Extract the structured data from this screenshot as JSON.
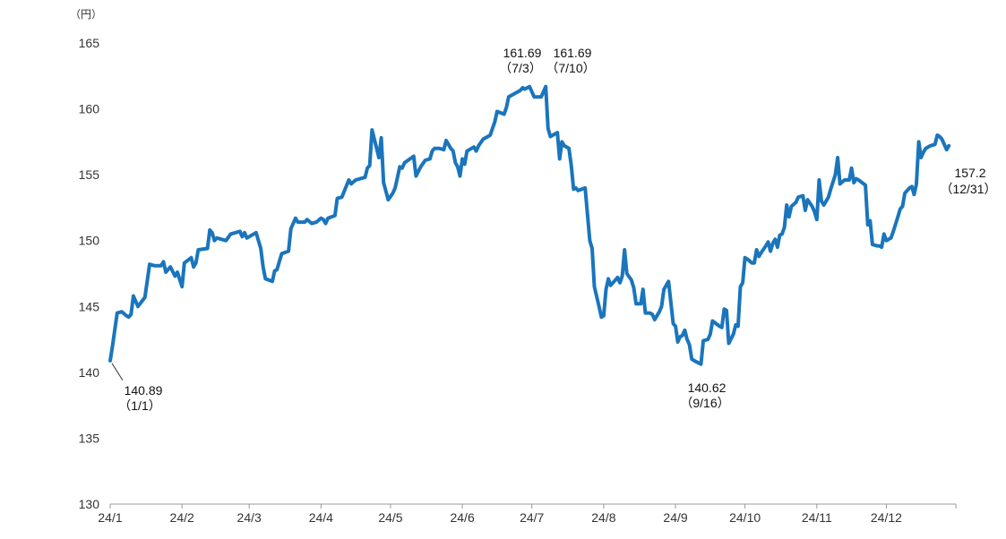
{
  "chart_data": {
    "type": "line",
    "unit_label": "（円）",
    "y_ticks": [
      130,
      135,
      140,
      145,
      150,
      155,
      160,
      165
    ],
    "ylim": [
      130,
      165
    ],
    "x_ticks": [
      "24/1",
      "24/2",
      "24/3",
      "24/4",
      "24/5",
      "24/6",
      "24/7",
      "24/8",
      "24/9",
      "24/10",
      "24/11",
      "24/12"
    ],
    "x_tick_days": [
      0,
      31,
      60,
      91,
      121,
      152,
      182,
      213,
      244,
      274,
      305,
      335
    ],
    "xlim_days": [
      0,
      365
    ],
    "line_color": "#1a75bc",
    "series": [
      {
        "points": [
          [
            0,
            140.89
          ],
          [
            1,
            142.0
          ],
          [
            3,
            144.5
          ],
          [
            5,
            144.6
          ],
          [
            7,
            144.3
          ],
          [
            8,
            144.2
          ],
          [
            9,
            144.4
          ],
          [
            10,
            145.8
          ],
          [
            12,
            145.0
          ],
          [
            15,
            145.7
          ],
          [
            17,
            148.2
          ],
          [
            19,
            148.1
          ],
          [
            22,
            148.1
          ],
          [
            23,
            148.4
          ],
          [
            24,
            147.6
          ],
          [
            26,
            148.0
          ],
          [
            28,
            147.3
          ],
          [
            29,
            147.6
          ],
          [
            31,
            146.5
          ],
          [
            32,
            148.3
          ],
          [
            35,
            148.7
          ],
          [
            36,
            148.0
          ],
          [
            37,
            148.3
          ],
          [
            38,
            149.3
          ],
          [
            42,
            149.4
          ],
          [
            43,
            150.8
          ],
          [
            44,
            150.6
          ],
          [
            45,
            150.0
          ],
          [
            46,
            150.2
          ],
          [
            50,
            150.0
          ],
          [
            52,
            150.5
          ],
          [
            56,
            150.7
          ],
          [
            57,
            150.3
          ],
          [
            58,
            150.6
          ],
          [
            59,
            150.2
          ],
          [
            63,
            150.6
          ],
          [
            65,
            149.4
          ],
          [
            66,
            148.0
          ],
          [
            67,
            147.1
          ],
          [
            70,
            146.9
          ],
          [
            71,
            147.7
          ],
          [
            72,
            147.8
          ],
          [
            74,
            149.0
          ],
          [
            77,
            149.2
          ],
          [
            78,
            150.9
          ],
          [
            80,
            151.7
          ],
          [
            81,
            151.4
          ],
          [
            84,
            151.4
          ],
          [
            85,
            151.6
          ],
          [
            87,
            151.3
          ],
          [
            89,
            151.4
          ],
          [
            91,
            151.7
          ],
          [
            92,
            151.6
          ],
          [
            93,
            151.3
          ],
          [
            94,
            151.7
          ],
          [
            97,
            151.9
          ],
          [
            98,
            153.2
          ],
          [
            100,
            153.3
          ],
          [
            103,
            154.6
          ],
          [
            104,
            154.3
          ],
          [
            106,
            154.6
          ],
          [
            110,
            154.8
          ],
          [
            111,
            155.5
          ],
          [
            112,
            155.7
          ],
          [
            113,
            158.4
          ],
          [
            116,
            156.3
          ],
          [
            117,
            157.8
          ],
          [
            118,
            154.4
          ],
          [
            120,
            153.1
          ],
          [
            122,
            153.6
          ],
          [
            123,
            154.0
          ],
          [
            125,
            155.6
          ],
          [
            126,
            155.5
          ],
          [
            127,
            155.9
          ],
          [
            131,
            156.4
          ],
          [
            132,
            154.9
          ],
          [
            134,
            155.6
          ],
          [
            136,
            156.1
          ],
          [
            138,
            156.2
          ],
          [
            139,
            156.8
          ],
          [
            140,
            157.0
          ],
          [
            142,
            157.0
          ],
          [
            144,
            156.9
          ],
          [
            145,
            157.6
          ],
          [
            147,
            157.0
          ],
          [
            148,
            156.8
          ],
          [
            149,
            155.9
          ],
          [
            150,
            155.6
          ],
          [
            151,
            154.9
          ],
          [
            152,
            156.2
          ],
          [
            153,
            155.8
          ],
          [
            154,
            156.8
          ],
          [
            157,
            157.1
          ],
          [
            158,
            156.8
          ],
          [
            159,
            157.2
          ],
          [
            161,
            157.7
          ],
          [
            163,
            157.9
          ],
          [
            164,
            158.0
          ],
          [
            165,
            158.5
          ],
          [
            166,
            159.0
          ],
          [
            167,
            159.8
          ],
          [
            170,
            159.6
          ],
          [
            171,
            160.1
          ],
          [
            172,
            160.9
          ],
          [
            175,
            161.2
          ],
          [
            177,
            161.4
          ],
          [
            178,
            161.6
          ],
          [
            179,
            161.5
          ],
          [
            181,
            161.69
          ],
          [
            183,
            160.9
          ],
          [
            186,
            160.9
          ],
          [
            188,
            161.69
          ],
          [
            189,
            158.5
          ],
          [
            190,
            157.9
          ],
          [
            192,
            158.1
          ],
          [
            193,
            158.2
          ],
          [
            194,
            156.2
          ],
          [
            195,
            157.5
          ],
          [
            196,
            157.2
          ],
          [
            198,
            157.0
          ],
          [
            199,
            155.7
          ],
          [
            200,
            153.9
          ],
          [
            201,
            154.0
          ],
          [
            202,
            153.8
          ],
          [
            205,
            154.0
          ],
          [
            206,
            152.0
          ],
          [
            207,
            150.0
          ],
          [
            208,
            149.4
          ],
          [
            209,
            146.5
          ],
          [
            211,
            145.0
          ],
          [
            212,
            144.2
          ],
          [
            213,
            144.3
          ],
          [
            214,
            146.3
          ],
          [
            215,
            147.1
          ],
          [
            216,
            146.6
          ],
          [
            218,
            147.0
          ],
          [
            219,
            147.2
          ],
          [
            220,
            146.8
          ],
          [
            221,
            147.3
          ],
          [
            222,
            149.3
          ],
          [
            223,
            147.5
          ],
          [
            225,
            147.0
          ],
          [
            226,
            146.4
          ],
          [
            227,
            145.2
          ],
          [
            229,
            145.2
          ],
          [
            230,
            146.3
          ],
          [
            231,
            144.5
          ],
          [
            233,
            144.5
          ],
          [
            234,
            144.4
          ],
          [
            235,
            144.0
          ],
          [
            237,
            144.6
          ],
          [
            238,
            145.0
          ],
          [
            239,
            146.3
          ],
          [
            241,
            146.9
          ],
          [
            243,
            143.7
          ],
          [
            244,
            143.5
          ],
          [
            245,
            142.3
          ],
          [
            246,
            142.7
          ],
          [
            247,
            142.8
          ],
          [
            248,
            143.2
          ],
          [
            249,
            142.5
          ],
          [
            250,
            142.1
          ],
          [
            251,
            141.0
          ],
          [
            253,
            140.8
          ],
          [
            255,
            140.62
          ],
          [
            256,
            142.4
          ],
          [
            258,
            142.5
          ],
          [
            259,
            142.9
          ],
          [
            260,
            143.9
          ],
          [
            263,
            143.5
          ],
          [
            264,
            143.4
          ],
          [
            265,
            144.8
          ],
          [
            266,
            144.7
          ],
          [
            267,
            142.2
          ],
          [
            269,
            142.9
          ],
          [
            270,
            143.6
          ],
          [
            271,
            143.5
          ],
          [
            272,
            146.5
          ],
          [
            273,
            146.8
          ],
          [
            274,
            148.7
          ],
          [
            275,
            148.6
          ],
          [
            277,
            148.3
          ],
          [
            278,
            148.3
          ],
          [
            279,
            149.3
          ],
          [
            280,
            148.8
          ],
          [
            281,
            149.1
          ],
          [
            283,
            149.6
          ],
          [
            284,
            149.9
          ],
          [
            285,
            149.2
          ],
          [
            286,
            149.8
          ],
          [
            287,
            150.1
          ],
          [
            288,
            149.5
          ],
          [
            289,
            150.4
          ],
          [
            290,
            150.5
          ],
          [
            291,
            151.0
          ],
          [
            292,
            152.7
          ],
          [
            293,
            151.8
          ],
          [
            294,
            152.6
          ],
          [
            296,
            152.9
          ],
          [
            297,
            153.3
          ],
          [
            299,
            153.4
          ],
          [
            300,
            152.3
          ],
          [
            301,
            153.1
          ],
          [
            303,
            152.6
          ],
          [
            304,
            152.2
          ],
          [
            305,
            151.6
          ],
          [
            306,
            154.6
          ],
          [
            307,
            153.0
          ],
          [
            308,
            152.7
          ],
          [
            310,
            153.3
          ],
          [
            311,
            153.9
          ],
          [
            313,
            155.0
          ],
          [
            314,
            156.3
          ],
          [
            315,
            154.3
          ],
          [
            317,
            154.6
          ],
          [
            319,
            154.6
          ],
          [
            320,
            155.5
          ],
          [
            321,
            154.4
          ],
          [
            322,
            154.7
          ],
          [
            323,
            154.6
          ],
          [
            326,
            154.2
          ],
          [
            327,
            151.2
          ],
          [
            328,
            151.5
          ],
          [
            329,
            149.7
          ],
          [
            331,
            149.6
          ],
          [
            332,
            149.6
          ],
          [
            333,
            149.5
          ],
          [
            334,
            150.5
          ],
          [
            335,
            150.0
          ],
          [
            337,
            150.2
          ],
          [
            338,
            150.7
          ],
          [
            340,
            151.8
          ],
          [
            341,
            152.4
          ],
          [
            342,
            152.6
          ],
          [
            343,
            153.6
          ],
          [
            345,
            154.0
          ],
          [
            346,
            154.1
          ],
          [
            347,
            153.5
          ],
          [
            348,
            154.3
          ],
          [
            349,
            157.5
          ],
          [
            350,
            156.3
          ],
          [
            351,
            156.7
          ],
          [
            352,
            157.0
          ],
          [
            354,
            157.2
          ],
          [
            356,
            157.3
          ],
          [
            357,
            158.0
          ],
          [
            358,
            157.9
          ],
          [
            359,
            157.7
          ],
          [
            361,
            156.9
          ],
          [
            362,
            157.2
          ]
        ]
      }
    ],
    "annotations": [
      {
        "value": "140.89",
        "date": "（1/1）"
      },
      {
        "value": "161.69",
        "date": "（7/3）"
      },
      {
        "value": "161.69",
        "date": "（7/10）"
      },
      {
        "value": "140.62",
        "date": "（9/16）"
      },
      {
        "value": "157.2",
        "date": "（12/31）"
      }
    ]
  }
}
